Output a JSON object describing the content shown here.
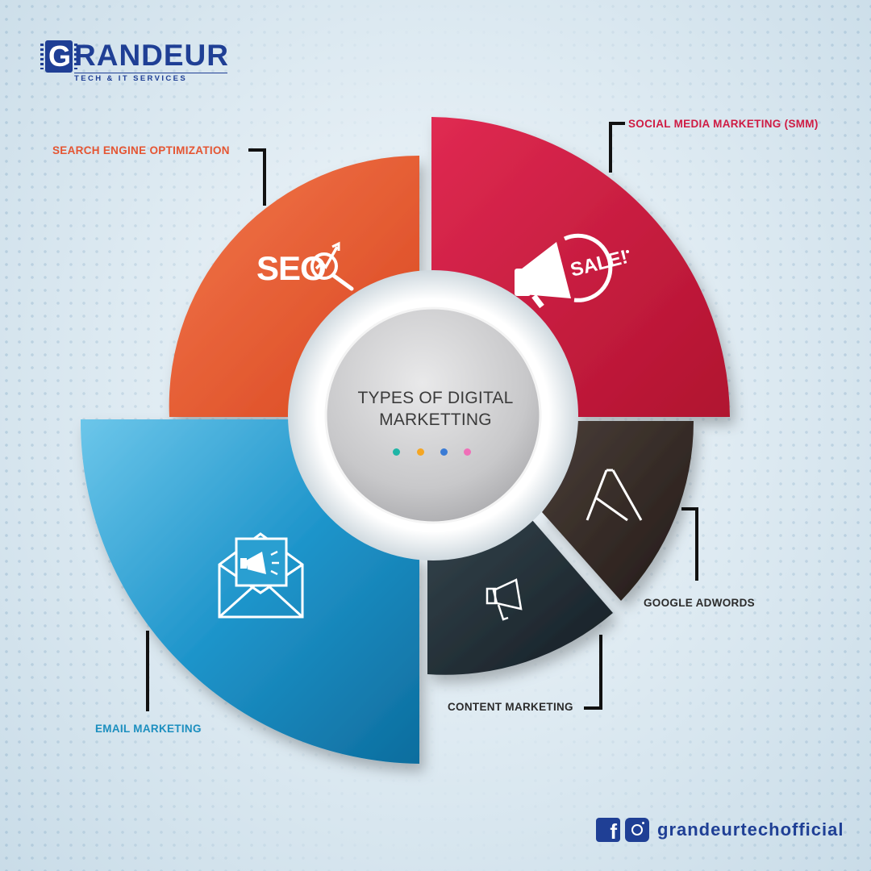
{
  "brand": {
    "logo_letter": "G",
    "name": "RANDEUR",
    "tagline": "TECH & IT SERVICES"
  },
  "center": {
    "title": "TYPES OF DIGITAL MARKETTING",
    "dot_colors": [
      "#1fb5a6",
      "#f5a623",
      "#3a7bd5",
      "#f06fb8"
    ]
  },
  "segments": [
    {
      "label": "SEARCH ENGINE OPTIMIZATION",
      "icon_text": "SEO",
      "icon": "seo-icon",
      "color": "#e8552f"
    },
    {
      "label": "SOCIAL MEDIA MARKETING (SMM)",
      "icon_text": "SALE!",
      "icon": "megaphone-sale-icon",
      "color": "#cf1b43"
    },
    {
      "label": "GOOGLE ADWORDS",
      "icon": "google-ads-icon",
      "color": "#3a2f2a"
    },
    {
      "label": "CONTENT MARKETING",
      "icon": "megaphone-icon",
      "color": "#22303a"
    },
    {
      "label": "EMAIL MARKETING",
      "icon": "email-megaphone-icon",
      "color": "#1e8cc4"
    }
  ],
  "social": {
    "handle": "grandeurtechofficial",
    "icons": [
      "facebook-icon",
      "instagram-icon"
    ]
  }
}
